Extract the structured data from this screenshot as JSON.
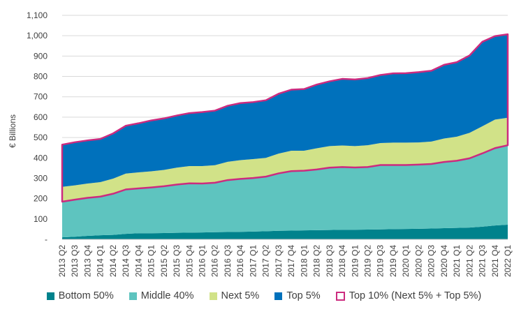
{
  "chart_data": {
    "type": "area",
    "stacked": true,
    "title": "",
    "xlabel": "",
    "ylabel": "€ Billions",
    "ylim": [
      0,
      1100
    ],
    "y_ticks": [
      0,
      100,
      200,
      300,
      400,
      500,
      600,
      700,
      800,
      900,
      1000,
      1100
    ],
    "y_tick_labels": [
      "-",
      "100",
      "200",
      "300",
      "400",
      "500",
      "600",
      "700",
      "800",
      "900",
      "1,000",
      "1,100"
    ],
    "grid": "horizontal",
    "legend_position": "bottom",
    "categories": [
      "2013 Q2",
      "2013 Q3",
      "2013 Q4",
      "2014 Q1",
      "2014 Q2",
      "2014 Q3",
      "2014 Q4",
      "2015 Q1",
      "2015 Q2",
      "2015 Q3",
      "2015 Q4",
      "2016 Q1",
      "2016 Q2",
      "2016 Q3",
      "2016 Q4",
      "2017 Q1",
      "2017 Q2",
      "2017 Q3",
      "2017 Q4",
      "2018 Q1",
      "2018 Q2",
      "2018 Q3",
      "2018 Q4",
      "2019 Q1",
      "2019 Q2",
      "2019 Q3",
      "2019 Q4",
      "2020 Q1",
      "2020 Q2",
      "2020 Q3",
      "2020 Q4",
      "2021 Q1",
      "2021 Q2",
      "2021 Q3",
      "2021 Q4",
      "2022 Q1"
    ],
    "series": [
      {
        "name": "Bottom 50%",
        "color": "#00828c",
        "values": [
          10,
          13,
          17,
          20,
          22,
          27,
          30,
          30,
          31,
          32,
          33,
          34,
          35,
          36,
          37,
          38,
          40,
          42,
          43,
          44,
          45,
          46,
          47,
          47,
          48,
          49,
          50,
          51,
          52,
          53,
          55,
          56,
          58,
          62,
          68,
          72
        ]
      },
      {
        "name": "Middle 40%",
        "color": "#5ec4bf",
        "values": [
          175,
          182,
          187,
          190,
          202,
          218,
          220,
          225,
          230,
          237,
          242,
          240,
          243,
          255,
          260,
          263,
          268,
          282,
          292,
          293,
          298,
          306,
          308,
          306,
          307,
          316,
          315,
          314,
          315,
          317,
          325,
          330,
          340,
          360,
          380,
          390
        ]
      },
      {
        "name": "Next 5%",
        "color": "#d1e288",
        "values": [
          73,
          70,
          70,
          71,
          74,
          78,
          79,
          79,
          80,
          83,
          85,
          86,
          86,
          90,
          92,
          93,
          92,
          97,
          100,
          98,
          104,
          106,
          106,
          105,
          107,
          108,
          110,
          110,
          109,
          110,
          115,
          118,
          125,
          133,
          140,
          135
        ]
      },
      {
        "name": "Top 5%",
        "color": "#0071bc",
        "values": [
          207,
          212,
          212,
          212,
          222,
          235,
          241,
          250,
          253,
          256,
          260,
          265,
          268,
          275,
          280,
          280,
          283,
          294,
          300,
          303,
          313,
          318,
          327,
          327,
          330,
          334,
          340,
          341,
          345,
          348,
          362,
          366,
          380,
          415,
          410,
          410
        ]
      }
    ],
    "highlight": {
      "name": "Top 10% (Next 5% + Top 5%)",
      "color": "#cc2b7f",
      "components": [
        "Next 5%",
        "Top 5%"
      ]
    }
  }
}
